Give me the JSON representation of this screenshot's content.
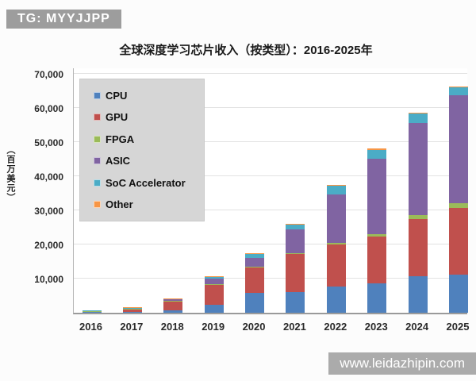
{
  "badge": {
    "text": "TG: MYYJJPP"
  },
  "watermark": {
    "text": "www.leidazhipin.com"
  },
  "chart_data": {
    "type": "bar",
    "subtype": "stacked",
    "title": "全球深度学习芯片收入（按类型）：2016-2025年",
    "ylabel": "（百万美元）",
    "xlabel": "",
    "categories": [
      "2016",
      "2017",
      "2018",
      "2019",
      "2020",
      "2021",
      "2022",
      "2023",
      "2024",
      "2025"
    ],
    "series": [
      {
        "name": "CPU",
        "color": "#4F81BD",
        "values": [
          200,
          300,
          800,
          2300,
          5800,
          6100,
          7700,
          8500,
          10800,
          11200
        ]
      },
      {
        "name": "GPU",
        "color": "#C0504D",
        "values": [
          350,
          900,
          2700,
          6000,
          7400,
          11000,
          12200,
          13800,
          16500,
          19400
        ]
      },
      {
        "name": "FPGA",
        "color": "#9BBB59",
        "values": [
          30,
          50,
          100,
          150,
          300,
          400,
          600,
          800,
          1200,
          1500
        ]
      },
      {
        "name": "ASIC",
        "color": "#8064A2",
        "values": [
          100,
          200,
          500,
          1600,
          2600,
          6900,
          14100,
          21900,
          26900,
          31500
        ]
      },
      {
        "name": "SoC Accelerator",
        "color": "#4BACC6",
        "values": [
          20,
          50,
          100,
          500,
          1200,
          1600,
          2700,
          2700,
          2900,
          2400
        ]
      },
      {
        "name": "Other",
        "color": "#F79646",
        "values": [
          10,
          20,
          30,
          50,
          100,
          100,
          200,
          300,
          200,
          300
        ]
      }
    ],
    "totals": [
      710,
      1520,
      4230,
      10600,
      17400,
      26100,
      37500,
      48000,
      58500,
      66300
    ],
    "y_ticks": [
      {
        "value": 10000,
        "label": "10,000"
      },
      {
        "value": 20000,
        "label": "20,000"
      },
      {
        "value": 30000,
        "label": "30,000"
      },
      {
        "value": 40000,
        "label": "40,000"
      },
      {
        "value": 50000,
        "label": "50,000"
      },
      {
        "value": 60000,
        "label": "60,000"
      },
      {
        "value": 70000,
        "label": "70,000"
      }
    ],
    "ylim": [
      0,
      72000
    ],
    "grid": true,
    "legend_position": "upper-left-inside"
  }
}
